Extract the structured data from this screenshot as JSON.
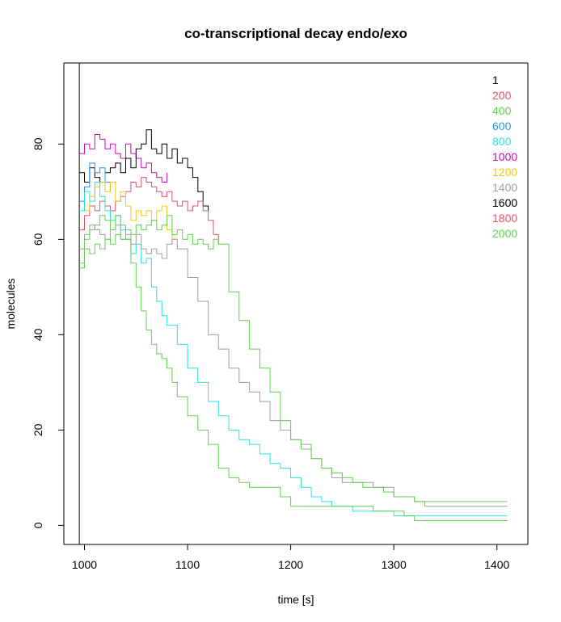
{
  "chart_data": {
    "type": "line",
    "title": "co-transcriptional decay endo/exo",
    "xlabel": "time [s]",
    "ylabel": "molecules",
    "xlim": [
      980,
      1430
    ],
    "ylim": [
      -4,
      97
    ],
    "x_ticks": [
      1000,
      1100,
      1200,
      1300,
      1400
    ],
    "y_ticks": [
      0,
      20,
      40,
      60,
      80
    ],
    "x_tick_labels": [
      "1000",
      "1100",
      "1200",
      "1300",
      "1400"
    ],
    "y_tick_labels": [
      "0",
      "20",
      "40",
      "60",
      "80"
    ],
    "vertical_reference_line": 995,
    "legend_position": "top-right",
    "legend": [
      {
        "label": "1",
        "color": "#000000"
      },
      {
        "label": "200",
        "color": "#DF536B"
      },
      {
        "label": "400",
        "color": "#61D04F"
      },
      {
        "label": "600",
        "color": "#2297E6"
      },
      {
        "label": "800",
        "color": "#28E2E5"
      },
      {
        "label": "1000",
        "color": "#CD0BBC"
      },
      {
        "label": "1200",
        "color": "#F5C710"
      },
      {
        "label": "1400",
        "color": "#9E9E9E"
      },
      {
        "label": "1600",
        "color": "#000000"
      },
      {
        "label": "1800",
        "color": "#DF536B"
      },
      {
        "label": "2000",
        "color": "#61D04F"
      }
    ],
    "series": [
      {
        "color": "#CD0BBC",
        "x": [
          995,
          1000,
          1005,
          1010,
          1015,
          1020,
          1025,
          1030,
          1035,
          1040,
          1045,
          1050,
          1055,
          1060,
          1065,
          1070,
          1075,
          1080
        ],
        "y": [
          78,
          80,
          79,
          82,
          81,
          79,
          80,
          78,
          77,
          80,
          78,
          77,
          75,
          76,
          74,
          73,
          72,
          74
        ]
      },
      {
        "color": "#000000",
        "x": [
          995,
          1000,
          1005,
          1010,
          1015,
          1020,
          1025,
          1030,
          1035,
          1040,
          1045,
          1050,
          1055,
          1060,
          1065,
          1070,
          1075,
          1080,
          1085,
          1090,
          1095,
          1100,
          1105,
          1110,
          1115,
          1120
        ],
        "y": [
          74,
          72,
          75,
          73,
          72,
          74,
          75,
          76,
          74,
          77,
          75,
          79,
          80,
          83,
          79,
          78,
          80,
          77,
          79,
          76,
          77,
          75,
          73,
          70,
          67,
          66
        ]
      },
      {
        "color": "#DF536B",
        "x": [
          995,
          1000,
          1005,
          1010,
          1015,
          1020,
          1025,
          1030,
          1035,
          1040,
          1045,
          1050,
          1055,
          1060,
          1065,
          1070,
          1075,
          1080,
          1085,
          1090,
          1095,
          1100,
          1105,
          1110,
          1115,
          1120,
          1125,
          1130
        ],
        "y": [
          62,
          65,
          67,
          66,
          68,
          67,
          66,
          68,
          69,
          70,
          72,
          71,
          73,
          72,
          71,
          70,
          69,
          70,
          68,
          67,
          68,
          66,
          67,
          68,
          66,
          64,
          61,
          59
        ]
      },
      {
        "color": "#2297E6",
        "x": [
          995,
          1000,
          1005,
          1010,
          1015,
          1020,
          1025
        ],
        "y": [
          68,
          71,
          76,
          74,
          75,
          72,
          70
        ]
      },
      {
        "color": "#F5C710",
        "x": [
          1000,
          1005,
          1010,
          1015,
          1020,
          1025,
          1030,
          1035,
          1040,
          1045,
          1050,
          1055,
          1060,
          1065,
          1070,
          1075,
          1080,
          1085
        ],
        "y": [
          66,
          69,
          71,
          72,
          70,
          72,
          68,
          70,
          67,
          64,
          66,
          65,
          66,
          64,
          66,
          67,
          62,
          59
        ]
      },
      {
        "color": "#28E2E5",
        "x": [
          995,
          1000,
          1005,
          1010,
          1015,
          1020,
          1025,
          1030,
          1035,
          1040,
          1045,
          1050,
          1055,
          1060,
          1065,
          1070,
          1075,
          1080,
          1090,
          1100,
          1110,
          1120,
          1130,
          1140,
          1150,
          1160,
          1170,
          1180,
          1190,
          1200,
          1210,
          1220,
          1230,
          1240,
          1250,
          1260,
          1270,
          1280,
          1290,
          1300,
          1310,
          1320,
          1330,
          1340,
          1360,
          1380,
          1400,
          1410
        ],
        "y": [
          66,
          70,
          68,
          72,
          69,
          66,
          64,
          65,
          62,
          60,
          57,
          59,
          55,
          56,
          50,
          47,
          44,
          42,
          38,
          33,
          30,
          26,
          23,
          20,
          18,
          17,
          15,
          13,
          12,
          10,
          8,
          6,
          5,
          4,
          4,
          3,
          3,
          3,
          3,
          2,
          2,
          2,
          2,
          2,
          2,
          2,
          2,
          2
        ]
      },
      {
        "color": "#9E9E9E",
        "x": [
          995,
          1000,
          1005,
          1010,
          1015,
          1020,
          1025,
          1030,
          1035,
          1040,
          1045,
          1050,
          1055,
          1060,
          1065,
          1070,
          1075,
          1080,
          1085,
          1090,
          1100,
          1110,
          1120,
          1130,
          1140,
          1150,
          1160,
          1170,
          1180,
          1190,
          1200,
          1210,
          1220,
          1230,
          1240,
          1250,
          1260,
          1270,
          1280,
          1290,
          1300,
          1310,
          1320,
          1330,
          1360,
          1400,
          1410
        ],
        "y": [
          58,
          61,
          63,
          62,
          61,
          60,
          62,
          63,
          60,
          61,
          59,
          61,
          58,
          57,
          58,
          57,
          56,
          59,
          60,
          58,
          52,
          47,
          40,
          37,
          33,
          30,
          28,
          26,
          22,
          20,
          18,
          17,
          14,
          12,
          10,
          9,
          9,
          9,
          8,
          8,
          6,
          6,
          5,
          4,
          4,
          4,
          4
        ]
      },
      {
        "color": "#61D04F",
        "x": [
          995,
          1000,
          1005,
          1010,
          1015,
          1020,
          1025,
          1030,
          1035,
          1040,
          1045,
          1050,
          1055,
          1060,
          1065,
          1070,
          1075,
          1080,
          1085,
          1090,
          1095,
          1100,
          1105,
          1110,
          1115,
          1120,
          1125,
          1130,
          1140,
          1150,
          1160,
          1170,
          1180,
          1190,
          1200,
          1210,
          1220,
          1230,
          1240,
          1250,
          1260,
          1270,
          1280,
          1290,
          1300,
          1310,
          1320,
          1330,
          1360,
          1400,
          1410
        ],
        "y": [
          54,
          58,
          57,
          59,
          58,
          60,
          59,
          61,
          60,
          62,
          61,
          63,
          62,
          63,
          64,
          62,
          63,
          65,
          61,
          62,
          60,
          61,
          59,
          60,
          59,
          58,
          60,
          59,
          49,
          43,
          37,
          33,
          28,
          22,
          18,
          16,
          14,
          12,
          11,
          10,
          9,
          8,
          8,
          7,
          6,
          6,
          5,
          5,
          5,
          5,
          5
        ]
      },
      {
        "color": "#61D04F",
        "x": [
          995,
          1000,
          1005,
          1010,
          1015,
          1020,
          1025,
          1030,
          1035,
          1040,
          1045,
          1050,
          1055,
          1060,
          1065,
          1070,
          1075,
          1080,
          1085,
          1090,
          1100,
          1110,
          1120,
          1130,
          1140,
          1150,
          1160,
          1170,
          1180,
          1190,
          1200,
          1210,
          1220,
          1240,
          1260,
          1280,
          1300,
          1310,
          1320,
          1330,
          1360,
          1400,
          1410
        ],
        "y": [
          55,
          60,
          62,
          63,
          65,
          64,
          62,
          65,
          63,
          60,
          55,
          50,
          45,
          41,
          38,
          36,
          35,
          33,
          30,
          27,
          23,
          20,
          17,
          12,
          10,
          9,
          8,
          8,
          8,
          6,
          4,
          4,
          4,
          4,
          4,
          3,
          3,
          2,
          1,
          1,
          1,
          1,
          1
        ]
      }
    ]
  }
}
